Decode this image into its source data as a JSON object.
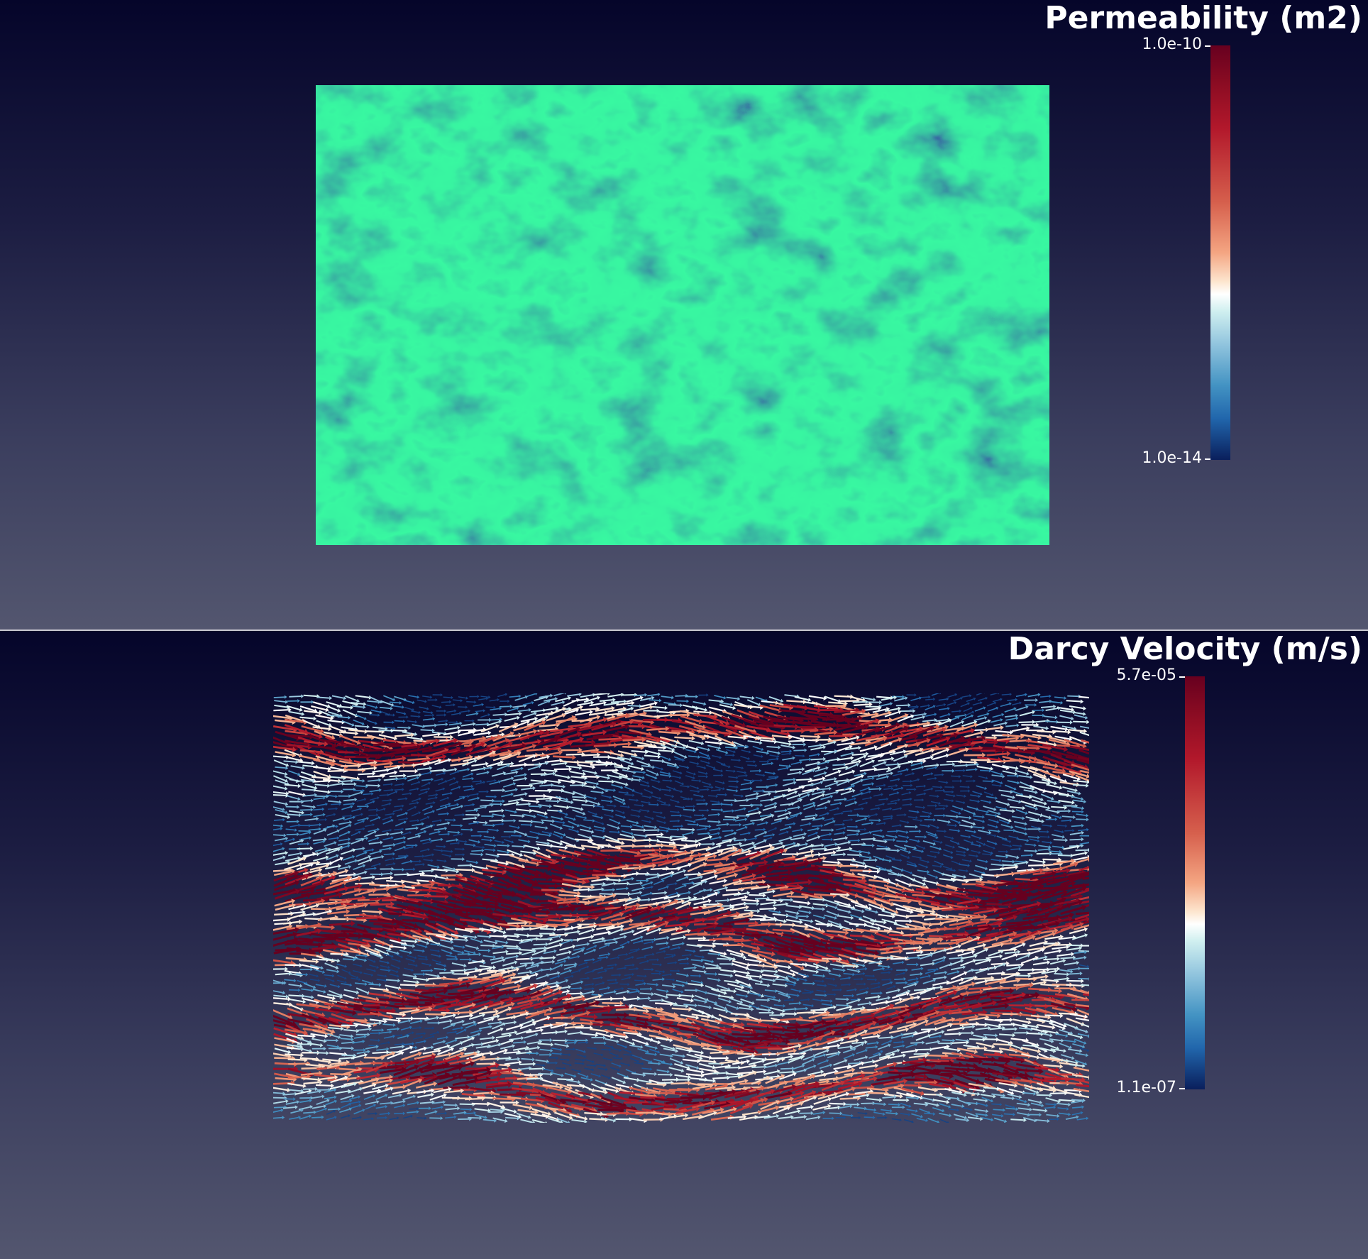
{
  "top_view": {
    "title": "Permeability (m2)",
    "colorbar": {
      "max_label": "1.0e-10",
      "min_label": "1.0e-14"
    },
    "colormap": "blue-white-red (diverging)"
  },
  "bottom_view": {
    "title": "Darcy Velocity (m/s)",
    "colorbar": {
      "max_label": "5.7e-05",
      "min_label": "1.1e-07"
    },
    "colormap": "blue-white-red (diverging)",
    "glyph_direction": "left-to-right"
  },
  "colors": {
    "background_top": "#05052a",
    "background_bottom": "#53566f",
    "separator": "#c8c8d0",
    "cmap": [
      "#67001f",
      "#b2182b",
      "#d6604d",
      "#f4a582",
      "#fde6cf",
      "#ffffff",
      "#d1f0f0",
      "#92c5de",
      "#4393c3",
      "#2166ac",
      "#0a1f5c"
    ]
  }
}
